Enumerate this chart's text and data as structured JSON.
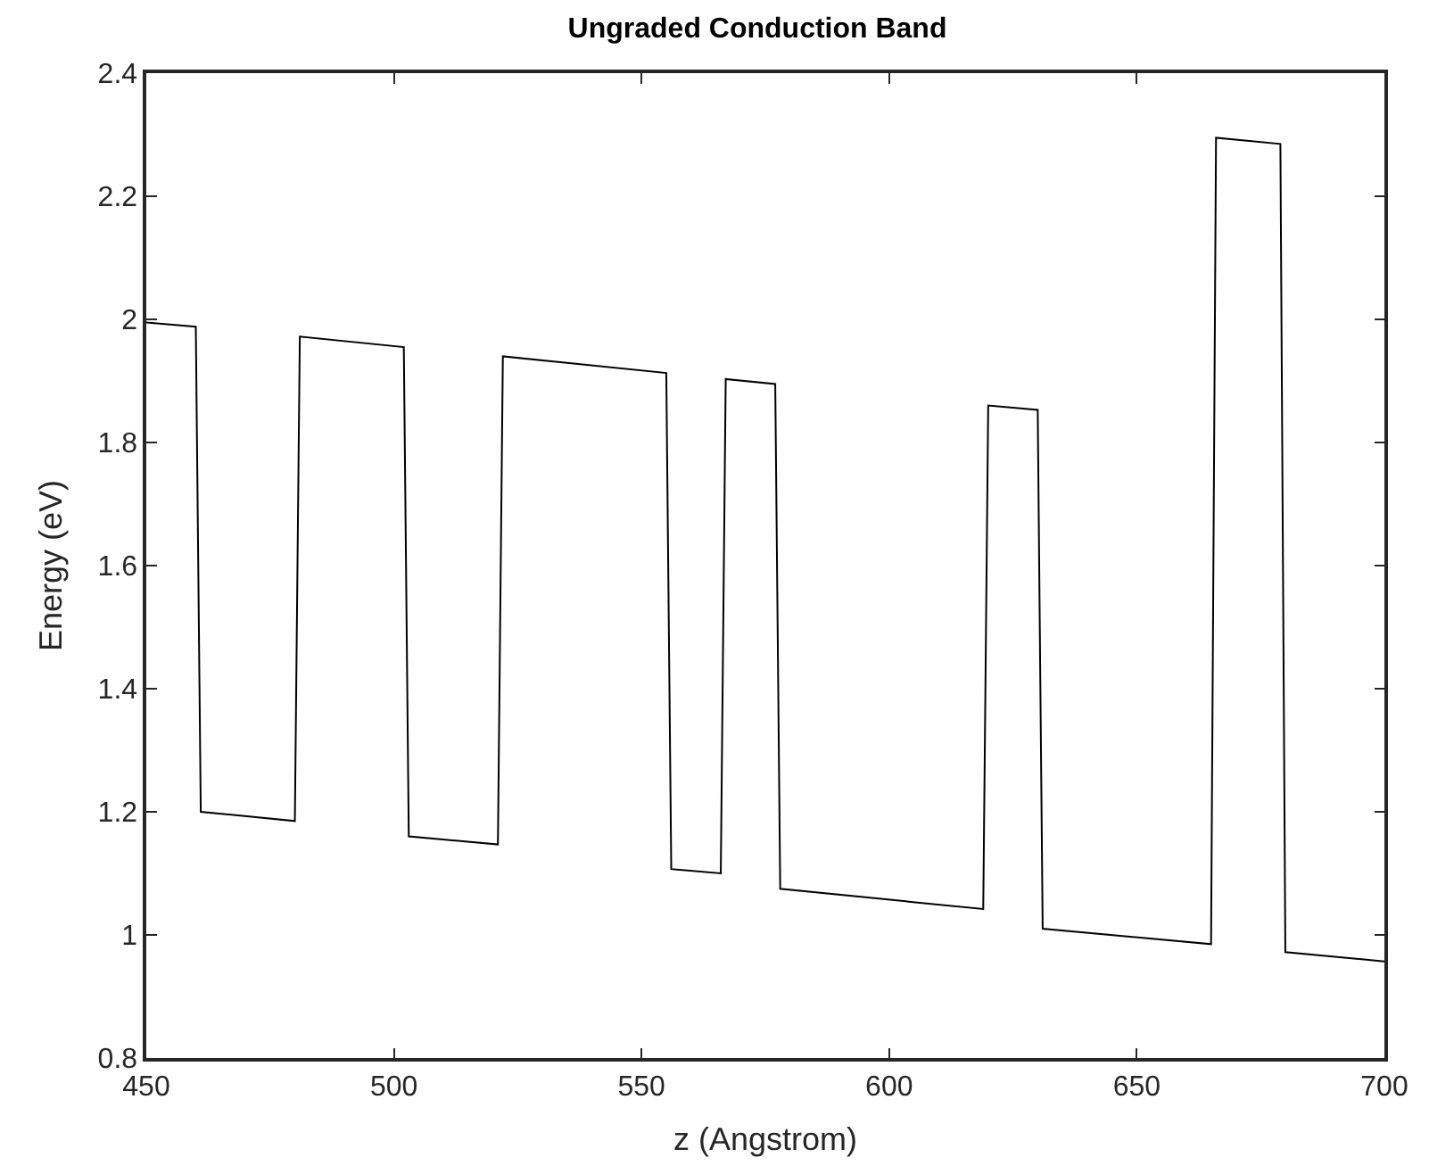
{
  "chart_data": {
    "type": "line",
    "title": "Ungraded Conduction Band",
    "xlabel": "z (Angstrom)",
    "ylabel": "Energy (eV)",
    "x": [
      450,
      460,
      461,
      480,
      481,
      502,
      503,
      521,
      522,
      555,
      556,
      566,
      567,
      577,
      578,
      619,
      620,
      630,
      631,
      665,
      666,
      679,
      680,
      700
    ],
    "series": [
      {
        "color": "#000000",
        "values": [
          1.995,
          1.988,
          1.2,
          1.185,
          1.972,
          1.955,
          1.16,
          1.147,
          1.94,
          1.913,
          1.107,
          1.1,
          1.903,
          1.895,
          1.075,
          1.042,
          1.86,
          1.853,
          1.01,
          0.985,
          2.295,
          2.285,
          0.972,
          0.957
        ]
      }
    ],
    "xlim": [
      450,
      700
    ],
    "xticks": [
      450,
      500,
      550,
      600,
      650,
      700
    ],
    "ylim": [
      0.8,
      2.4
    ],
    "yticks": [
      0.8,
      1,
      1.2,
      1.4,
      1.6,
      1.8,
      2,
      2.2,
      2.4
    ],
    "marker": "none",
    "line_style": "solid"
  }
}
